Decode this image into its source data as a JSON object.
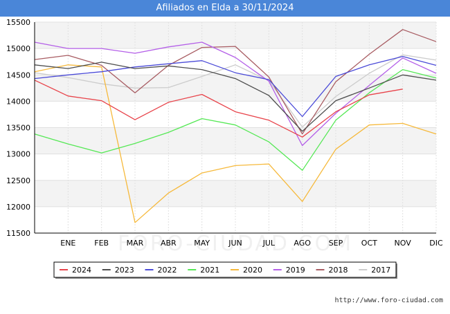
{
  "title": "Afiliados en Elda a 30/11/2024",
  "watermark": "FORO-CIUDAD.COM",
  "credit": "http://www.foro-ciudad.com",
  "chart_data": {
    "type": "line",
    "title": "Afiliados en Elda a 30/11/2024",
    "categories": [
      "",
      "ENE",
      "FEB",
      "MAR",
      "ABR",
      "MAY",
      "JUN",
      "JUL",
      "AGO",
      "SEP",
      "OCT",
      "NOV",
      "DIC"
    ],
    "ylim": [
      11500,
      15500
    ],
    "yticks": [
      11500,
      12000,
      12500,
      13000,
      13500,
      14000,
      14500,
      15000,
      15500
    ],
    "grid": true,
    "legend_position": "bottom",
    "series": [
      {
        "name": "2024",
        "color": "#e8434a",
        "values": [
          14400,
          14100,
          14010,
          13650,
          13980,
          14130,
          13800,
          13640,
          13320,
          13800,
          14120,
          14230,
          null
        ]
      },
      {
        "name": "2023",
        "color": "#4d4d4d",
        "values": [
          14690,
          14620,
          14740,
          14620,
          14670,
          14600,
          14430,
          14110,
          13430,
          14010,
          14250,
          14500,
          14400
        ]
      },
      {
        "name": "2022",
        "color": "#4a4ad8",
        "values": [
          14430,
          14500,
          14560,
          14650,
          14710,
          14770,
          14540,
          14410,
          13710,
          14470,
          14690,
          14850,
          14680
        ]
      },
      {
        "name": "2021",
        "color": "#55e855",
        "values": [
          13380,
          13190,
          13020,
          13200,
          13410,
          13670,
          13550,
          13230,
          12690,
          13640,
          14160,
          14600,
          14440
        ]
      },
      {
        "name": "2020",
        "color": "#f6b93b",
        "values": [
          14560,
          14690,
          14650,
          11700,
          12260,
          12640,
          12780,
          12810,
          12100,
          13090,
          13550,
          13580,
          13380
        ]
      },
      {
        "name": "2019",
        "color": "#b45fe8",
        "values": [
          15120,
          15000,
          15000,
          14910,
          15030,
          15120,
          14830,
          14380,
          13160,
          13770,
          14300,
          14820,
          14530
        ]
      },
      {
        "name": "2018",
        "color": "#a85c62",
        "values": [
          14790,
          14870,
          14680,
          14160,
          14680,
          15020,
          15040,
          14460,
          13380,
          14370,
          14890,
          15360,
          15130
        ]
      },
      {
        "name": "2017",
        "color": "#cccccc",
        "values": [
          14540,
          14450,
          14330,
          14250,
          14260,
          14470,
          14690,
          14390,
          13510,
          14090,
          14530,
          14880,
          14780
        ]
      }
    ]
  }
}
